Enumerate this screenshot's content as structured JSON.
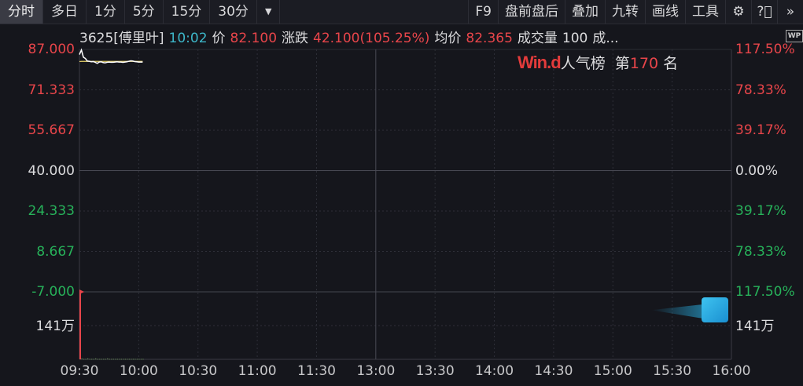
{
  "toolbar": {
    "tabs": [
      "分时",
      "多日",
      "1分",
      "5分",
      "15分",
      "30分"
    ],
    "active_tab": "分时",
    "dropdown_icon": "dropdown-triangle-icon",
    "right_items": [
      "F9",
      "盘前盘后",
      "叠加",
      "九转",
      "画线",
      "工具"
    ],
    "icons": [
      "gear-icon",
      "help-icon",
      "double-chevron-right-icon"
    ]
  },
  "info": {
    "code_name": "3625[傅里叶]",
    "time": "10:02",
    "price_label": "价",
    "price": "82.100",
    "change_label": "涨跌",
    "change": "42.100(105.25%)",
    "avg_label": "均价",
    "avg": "82.365",
    "volume_label": "成交量",
    "volume": "100",
    "more": "成..."
  },
  "rank": {
    "brand": "Win.d",
    "label": "人气榜",
    "prefix": "第",
    "value": "170",
    "suffix": "名"
  },
  "wp_badge": "WP",
  "colors": {
    "up": "#e8454a",
    "down": "#27b25a",
    "price_line": "#ffffff",
    "avg_line": "#e8d36a",
    "background": "#15161c"
  },
  "chart_data": {
    "type": "line",
    "y_ticks_left": [
      "87.000",
      "71.333",
      "55.667",
      "40.000",
      "24.333",
      "8.667",
      "-7.000"
    ],
    "y_ticks_right": [
      "117.50%",
      "78.33%",
      "39.17%",
      "0.00%",
      "39.17%",
      "78.33%",
      "117.50%"
    ],
    "ylim": [
      -7,
      87
    ],
    "prev_close": 40,
    "x_ticks": [
      "09:30",
      "10:00",
      "10:30",
      "11:00",
      "11:30",
      "13:00",
      "13:30",
      "14:00",
      "14:30",
      "15:00",
      "15:30",
      "16:00"
    ],
    "volume_axis_label": "141万",
    "volume_max": 141,
    "series": [
      {
        "key": "price",
        "start": "09:30",
        "interval_min": 1,
        "values": [
          85,
          86.8,
          84,
          83.5,
          82.5,
          82.4,
          82.2,
          82.3,
          82,
          81.6,
          82.1,
          82.2,
          81.9,
          81.8,
          82,
          82.1,
          82,
          82,
          82.1,
          82.2,
          82.1,
          82.1,
          82,
          82.1,
          82.2,
          82.4,
          82.6,
          82.5,
          82.3,
          82.2,
          82.1,
          82.1,
          82.1
        ]
      },
      {
        "key": "avg",
        "start": "09:30",
        "interval_min": 1,
        "values": [
          82.3,
          82.35,
          82.36,
          82.36,
          82.36,
          82.36,
          82.36,
          82.36,
          82.36,
          82.36,
          82.36,
          82.36,
          82.36,
          82.36,
          82.36,
          82.36,
          82.36,
          82.36,
          82.36,
          82.36,
          82.36,
          82.36,
          82.36,
          82.36,
          82.36,
          82.36,
          82.36,
          82.36,
          82.36,
          82.365,
          82.365,
          82.365,
          82.365
        ]
      },
      {
        "key": "volume_wan",
        "start": "09:30",
        "interval_min": 1,
        "values": [
          141,
          2,
          1,
          1,
          2,
          1,
          1,
          1,
          2,
          1,
          1,
          1,
          1,
          1,
          2,
          1,
          1,
          1,
          1,
          1,
          1,
          1,
          1,
          1,
          1,
          1,
          1,
          1,
          1,
          1,
          1,
          1,
          1
        ]
      }
    ]
  }
}
